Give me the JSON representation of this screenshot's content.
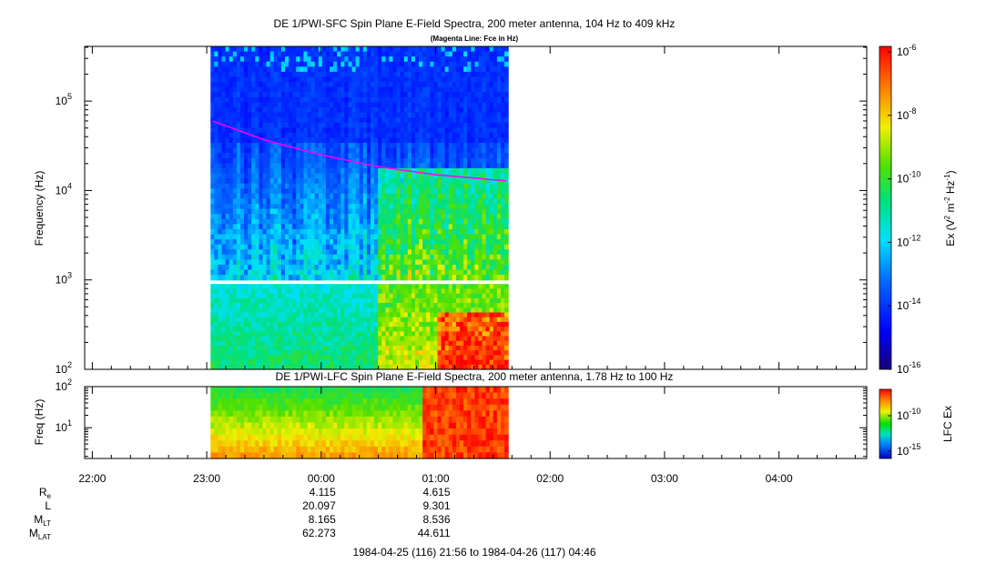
{
  "chart_data": [
    {
      "type": "heatmap",
      "title": "DE 1/PWI-SFC  Spin Plane E-Field Spectra, 200 meter antenna, 104 Hz to 409 kHz",
      "subtitle": "(Magenta Line: Fce in Hz)",
      "ylabel": "Frequency (Hz)",
      "yscale": "log",
      "ylim": [
        100,
        409000
      ],
      "yticks": [
        {
          "value": 100,
          "base": "10",
          "exp": "2"
        },
        {
          "value": 1000,
          "base": "10",
          "exp": "3"
        },
        {
          "value": 10000,
          "base": "10",
          "exp": "4"
        },
        {
          "value": 100000,
          "base": "10",
          "exp": "5"
        }
      ],
      "xlim": [
        "1984-04-25 21:56",
        "1984-04-26 04:46"
      ],
      "data_interval": [
        "1984-04-25 23:02",
        "1984-04-26 01:38"
      ],
      "magenta_fce_line": [
        {
          "t": "1984-04-25 23:03",
          "f": 60000
        },
        {
          "t": "1984-04-25 23:30",
          "f": 37000
        },
        {
          "t": "1984-04-26 00:00",
          "f": 25000
        },
        {
          "t": "1984-04-26 00:30",
          "f": 18500
        },
        {
          "t": "1984-04-26 01:00",
          "f": 15000
        },
        {
          "t": "1984-04-26 01:37",
          "f": 12800
        }
      ],
      "colorbar": {
        "label_pre": "Ex (V",
        "label_exp1": "2",
        "label_mid": " m",
        "label_exp2": "-2",
        "label_mid2": " Hz",
        "label_exp3": "-1",
        "label_post": ")",
        "range": [
          1e-16,
          1e-06
        ],
        "ticks": [
          {
            "base": "10",
            "exp": "-6"
          },
          {
            "base": "10",
            "exp": "-8"
          },
          {
            "base": "10",
            "exp": "-10"
          },
          {
            "base": "10",
            "exp": "-12"
          },
          {
            "base": "10",
            "exp": "-14"
          },
          {
            "base": "10",
            "exp": "-16"
          }
        ]
      }
    },
    {
      "type": "heatmap",
      "title": "DE 1/PWI-LFC  Spin Plane E-Field Spectra, 200 meter antenna, 1.78 Hz to 100 Hz",
      "ylabel": "Freq (Hz)",
      "yscale": "log",
      "ylim": [
        1.78,
        100
      ],
      "yticks": [
        {
          "value": 10,
          "base": "10",
          "exp": "1"
        },
        {
          "value": 100,
          "base": "10",
          "exp": "2"
        }
      ],
      "data_interval": [
        "1984-04-25 23:02",
        "1984-04-26 01:38"
      ],
      "colorbar": {
        "label": "LFC Ex",
        "ticks": [
          {
            "base": "10",
            "exp": "-10"
          },
          {
            "base": "10",
            "exp": "-15"
          }
        ]
      }
    }
  ],
  "time_axis": {
    "ticks": [
      "22:00",
      "23:00",
      "00:00",
      "01:00",
      "02:00",
      "03:00",
      "04:00"
    ]
  },
  "orbit": {
    "rows": [
      {
        "label": "R",
        "sub": "e",
        "values": [
          "4.115",
          "4.615"
        ]
      },
      {
        "label": "L",
        "sub": "",
        "values": [
          "20.097",
          "9.301"
        ]
      },
      {
        "label": "M",
        "sub": "LT",
        "values": [
          "8.165",
          "8.536"
        ]
      },
      {
        "label": "M",
        "sub": "LAT",
        "values": [
          "62.273",
          "44.611"
        ]
      }
    ],
    "footer": "1984-04-25 (116) 21:56 to 1984-04-26 (117) 04:46"
  }
}
